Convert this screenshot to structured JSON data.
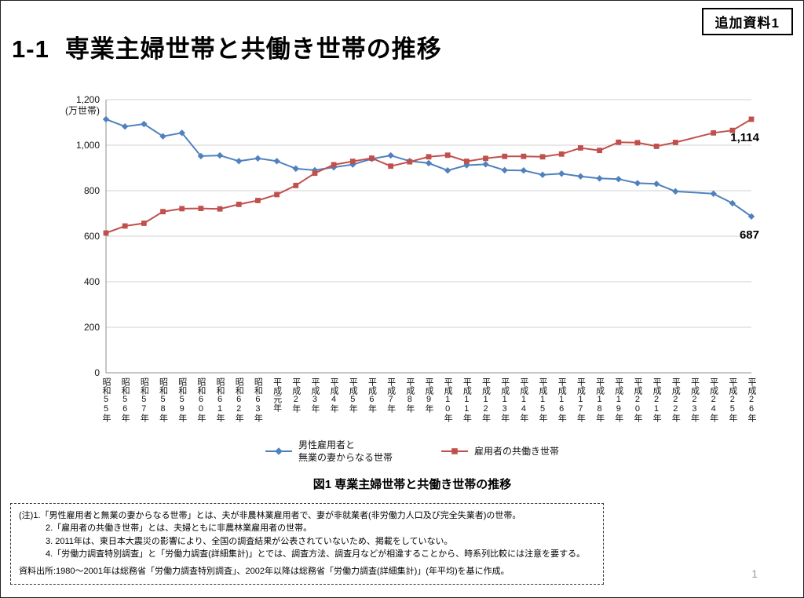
{
  "page": {
    "tag_label": "追加資料1",
    "page_number": "1"
  },
  "header": {
    "number": "1-1",
    "title": "専業主婦世帯と共働き世帯の推移"
  },
  "chart_data": {
    "type": "line",
    "caption": "図1 専業主婦世帯と共働き世帯の推移",
    "y_axis": {
      "unit_label": "(万世帯)",
      "min": 0,
      "max": 1200,
      "tick_interval": 200,
      "tick_labels": [
        "0",
        "200",
        "400",
        "600",
        "800",
        "1,000",
        "1,200"
      ]
    },
    "categories": [
      "昭和55年",
      "昭和56年",
      "昭和57年",
      "昭和58年",
      "昭和59年",
      "昭和60年",
      "昭和61年",
      "昭和62年",
      "昭和63年",
      "平成元年",
      "平成2年",
      "平成3年",
      "平成4年",
      "平成5年",
      "平成6年",
      "平成7年",
      "平成8年",
      "平成9年",
      "平成10年",
      "平成11年",
      "平成12年",
      "平成13年",
      "平成14年",
      "平成15年",
      "平成16年",
      "平成17年",
      "平成18年",
      "平成19年",
      "平成20年",
      "平成21年",
      "平成22年",
      "平成23年",
      "平成24年",
      "平成25年",
      "平成26年"
    ],
    "series": [
      {
        "name": "男性雇用者と無業の妻からなる世帯",
        "color": "#4F81BD",
        "marker": "diamond",
        "end_label": "687",
        "values": [
          1114,
          1082,
          1093,
          1039,
          1054,
          952,
          955,
          930,
          942,
          930,
          897,
          890,
          903,
          915,
          940,
          955,
          930,
          921,
          889,
          912,
          916,
          890,
          889,
          870,
          875,
          863,
          854,
          851,
          833,
          830,
          797,
          null,
          787,
          745,
          687
        ]
      },
      {
        "name": "雇用者の共働き世帯",
        "color": "#C0504D",
        "marker": "square",
        "end_label": "1,114",
        "values": [
          614,
          645,
          657,
          708,
          721,
          722,
          720,
          740,
          757,
          783,
          823,
          877,
          914,
          929,
          943,
          908,
          927,
          949,
          956,
          929,
          942,
          951,
          951,
          949,
          961,
          988,
          977,
          1013,
          1011,
          995,
          1012,
          null,
          1054,
          1065,
          1114
        ]
      }
    ]
  },
  "legend": {
    "items": [
      {
        "lines": [
          "男性雇用者と",
          "無業の妻からなる世帯"
        ]
      },
      {
        "lines": [
          "雇用者の共働き世帯"
        ]
      }
    ]
  },
  "notes": {
    "label": "(注)",
    "items": [
      "1.「男性雇用者と無業の妻からなる世帯」とは、夫が非農林業雇用者で、妻が非就業者(非労働力人口及び完全失業者)の世帯。",
      "2.「雇用者の共働き世帯」とは、夫婦ともに非農林業雇用者の世帯。",
      "3. 2011年は、東日本大震災の影響により、全国の調査結果が公表されていないため、掲載をしていない。",
      "4.「労働力調査特別調査」と「労働力調査(詳細集計)」とでは、調査方法、調査月などが相違することから、時系列比較には注意を要する。"
    ],
    "source": "資料出所:1980〜2001年は総務省「労働力調査特別調査」、2002年以降は総務省「労働力調査(詳細集計)」(年平均)を基に作成。"
  }
}
